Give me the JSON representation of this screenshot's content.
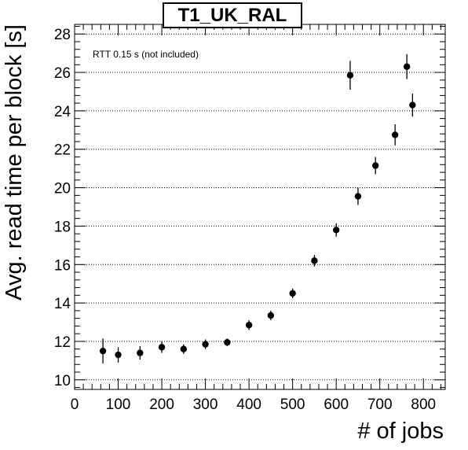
{
  "chart_data": {
    "type": "scatter",
    "title": "T1_UK_RAL",
    "xlabel": "# of jobs",
    "ylabel": "Avg. read time per block [s]",
    "annotation": "RTT 0.15 s (not included)",
    "xlim": [
      0,
      850
    ],
    "ylim": [
      9.5,
      28.5
    ],
    "x_ticks": [
      0,
      100,
      200,
      300,
      400,
      500,
      600,
      700,
      800
    ],
    "y_ticks": [
      10,
      12,
      14,
      16,
      18,
      20,
      22,
      24,
      26,
      28
    ],
    "grid": "horizontal dotted",
    "error_bars": true,
    "points": [
      {
        "x": 65,
        "y": 11.5,
        "err": 0.65
      },
      {
        "x": 100,
        "y": 11.3,
        "err": 0.4
      },
      {
        "x": 150,
        "y": 11.4,
        "err": 0.35
      },
      {
        "x": 200,
        "y": 11.7,
        "err": 0.3
      },
      {
        "x": 250,
        "y": 11.6,
        "err": 0.25
      },
      {
        "x": 300,
        "y": 11.85,
        "err": 0.25
      },
      {
        "x": 350,
        "y": 11.95,
        "err": 0.2
      },
      {
        "x": 400,
        "y": 12.85,
        "err": 0.25
      },
      {
        "x": 450,
        "y": 13.35,
        "err": 0.25
      },
      {
        "x": 500,
        "y": 14.5,
        "err": 0.25
      },
      {
        "x": 550,
        "y": 16.2,
        "err": 0.3
      },
      {
        "x": 600,
        "y": 17.8,
        "err": 0.35
      },
      {
        "x": 632,
        "y": 25.85,
        "err": 0.75
      },
      {
        "x": 650,
        "y": 19.55,
        "err": 0.45
      },
      {
        "x": 690,
        "y": 21.15,
        "err": 0.45
      },
      {
        "x": 735,
        "y": 22.75,
        "err": 0.55
      },
      {
        "x": 762,
        "y": 26.3,
        "err": 0.65
      },
      {
        "x": 775,
        "y": 24.3,
        "err": 0.6
      }
    ]
  }
}
